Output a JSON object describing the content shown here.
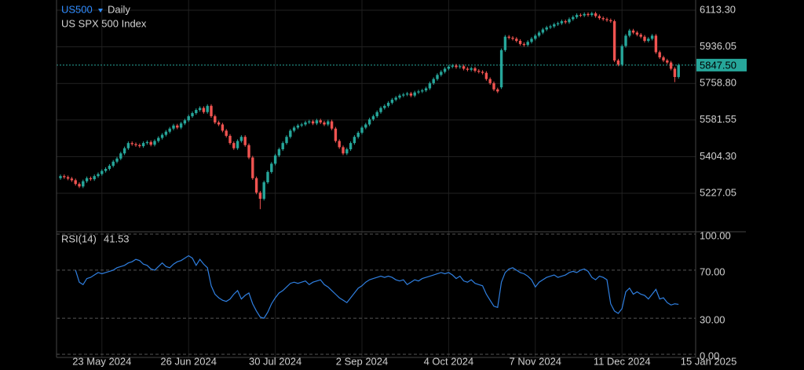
{
  "chart_data": [
    {
      "type": "candlestick",
      "title": "US500",
      "timeframe": "Daily",
      "subtitle": "US SPX 500 Index",
      "up_color": "#26a69a",
      "down_color": "#ef5350",
      "grid": true,
      "ylim": [
        5040.6,
        6162.75
      ],
      "yticks": [
        {
          "value": 6113.3,
          "label": "6113.30"
        },
        {
          "value": 5936.05,
          "label": "5936.05"
        },
        {
          "value": 5758.8,
          "label": "5758.80"
        },
        {
          "value": 5581.55,
          "label": "5581.55"
        },
        {
          "value": 5404.3,
          "label": "5404.30"
        },
        {
          "value": 5227.05,
          "label": "5227.05"
        }
      ],
      "last_price": {
        "value": 5847.5,
        "label": "5847.50",
        "color": "#26a69a"
      },
      "categories": [
        null,
        null,
        null,
        null,
        null,
        null,
        null,
        null,
        null,
        null,
        null,
        "23 May 2024",
        null,
        null,
        null,
        null,
        null,
        null,
        null,
        null,
        null,
        null,
        null,
        null,
        null,
        null,
        null,
        null,
        null,
        null,
        null,
        null,
        null,
        null,
        "26 Jun 2024",
        null,
        null,
        null,
        null,
        null,
        null,
        null,
        null,
        null,
        null,
        null,
        null,
        null,
        null,
        null,
        null,
        null,
        null,
        null,
        null,
        null,
        null,
        "30 Jul 2024",
        null,
        null,
        null,
        null,
        null,
        null,
        null,
        null,
        null,
        null,
        null,
        null,
        null,
        null,
        null,
        null,
        null,
        null,
        null,
        null,
        null,
        null,
        "2 Sep 2024",
        null,
        null,
        null,
        null,
        null,
        null,
        null,
        null,
        null,
        null,
        null,
        null,
        null,
        null,
        null,
        null,
        null,
        null,
        null,
        null,
        null,
        null,
        "4 Oct 2024",
        null,
        null,
        null,
        null,
        null,
        null,
        null,
        null,
        null,
        null,
        null,
        null,
        null,
        null,
        null,
        null,
        null,
        null,
        null,
        null,
        null,
        null,
        "7 Nov 2024",
        null,
        null,
        null,
        null,
        null,
        null,
        null,
        null,
        null,
        null,
        null,
        null,
        null,
        null,
        null,
        null,
        null,
        null,
        null,
        null,
        null,
        null,
        "11 Dec 2024",
        null,
        null,
        null,
        null,
        null,
        null,
        null,
        null,
        null,
        null,
        null,
        null,
        null,
        null,
        null,
        null,
        null,
        null,
        null,
        null,
        null,
        null,
        "15 Jan 2025"
      ],
      "open": [
        5300,
        5310,
        5305,
        5298,
        5290,
        5272,
        5260,
        5285,
        5300,
        5295,
        5310,
        5320,
        5335,
        5345,
        5360,
        5380,
        5395,
        5420,
        5445,
        5470,
        5465,
        5460,
        5455,
        5470,
        5475,
        5462,
        5480,
        5495,
        5510,
        5525,
        5540,
        5555,
        5545,
        5565,
        5580,
        5600,
        5615,
        5630,
        5640,
        5620,
        5650,
        5600,
        5570,
        5560,
        5530,
        5505,
        5470,
        5445,
        5480,
        5500,
        5460,
        5400,
        5300,
        5230,
        5200,
        5280,
        5330,
        5370,
        5410,
        5440,
        5470,
        5500,
        5530,
        5545,
        5555,
        5560,
        5570,
        5575,
        5565,
        5580,
        5570,
        5560,
        5575,
        5540,
        5480,
        5450,
        5420,
        5440,
        5470,
        5500,
        5520,
        5545,
        5560,
        5585,
        5600,
        5620,
        5640,
        5650,
        5665,
        5680,
        5690,
        5700,
        5705,
        5710,
        5700,
        5715,
        5720,
        5725,
        5735,
        5760,
        5780,
        5800,
        5815,
        5830,
        5840,
        5845,
        5838,
        5842,
        5830,
        5825,
        5832,
        5820,
        5815,
        5810,
        5780,
        5760,
        5730,
        5740,
        5920,
        5985,
        5980,
        5975,
        5965,
        5950,
        5945,
        5960,
        5975,
        5990,
        6005,
        6020,
        6030,
        6035,
        6045,
        6050,
        6060,
        6055,
        6070,
        6080,
        6090,
        6088,
        6095,
        6090,
        6098,
        6085,
        6075,
        6070,
        6065,
        6060,
        5870,
        5850,
        5940,
        5990,
        6015,
        6005,
        5995,
        5985,
        5965,
        5975,
        5990,
        5910,
        5885,
        5870,
        5860,
        5830,
        5790,
        null,
        null,
        null,
        null,
        null,
        null,
        null,
        null
      ],
      "high": [
        5318,
        5318,
        5313,
        5306,
        5298,
        5280,
        5293,
        5308,
        5308,
        5318,
        5328,
        5343,
        5353,
        5368,
        5388,
        5403,
        5428,
        5453,
        5478,
        5478,
        5473,
        5468,
        5478,
        5483,
        5483,
        5488,
        5503,
        5518,
        5533,
        5548,
        5563,
        5563,
        5573,
        5588,
        5608,
        5623,
        5638,
        5648,
        5648,
        5658,
        5658,
        5608,
        5578,
        5568,
        5538,
        5513,
        5478,
        5488,
        5508,
        5508,
        5468,
        5408,
        5308,
        5238,
        5288,
        5338,
        5378,
        5418,
        5448,
        5478,
        5508,
        5538,
        5553,
        5563,
        5568,
        5578,
        5583,
        5583,
        5588,
        5588,
        5578,
        5583,
        5583,
        5548,
        5488,
        5458,
        5448,
        5478,
        5508,
        5528,
        5553,
        5568,
        5593,
        5608,
        5628,
        5648,
        5658,
        5673,
        5688,
        5698,
        5708,
        5713,
        5718,
        5718,
        5723,
        5728,
        5733,
        5743,
        5768,
        5788,
        5808,
        5823,
        5838,
        5848,
        5853,
        5853,
        5850,
        5850,
        5838,
        5840,
        5840,
        5828,
        5823,
        5818,
        5788,
        5768,
        5738,
        5928,
        5993,
        5993,
        5988,
        5983,
        5973,
        5958,
        5968,
        5983,
        5998,
        6013,
        6028,
        6038,
        6043,
        6053,
        6058,
        6068,
        6068,
        6078,
        6088,
        6098,
        6098,
        6103,
        6103,
        6106,
        6106,
        6093,
        6083,
        6078,
        6073,
        6068,
        5878,
        5948,
        5998,
        6023,
        6023,
        6013,
        6003,
        5993,
        5983,
        5998,
        5998,
        5918,
        5893,
        5878,
        5868,
        5838,
        5855,
        null,
        null,
        null,
        null,
        null,
        null,
        null,
        null
      ],
      "low": [
        5292,
        5297,
        5290,
        5282,
        5264,
        5252,
        5252,
        5277,
        5287,
        5287,
        5302,
        5312,
        5327,
        5337,
        5352,
        5372,
        5387,
        5412,
        5437,
        5457,
        5452,
        5447,
        5447,
        5462,
        5454,
        5454,
        5472,
        5487,
        5502,
        5517,
        5532,
        5537,
        5537,
        5557,
        5572,
        5592,
        5607,
        5622,
        5612,
        5612,
        5592,
        5562,
        5552,
        5522,
        5497,
        5462,
        5437,
        5437,
        5472,
        5452,
        5392,
        5292,
        5222,
        5150,
        5192,
        5272,
        5322,
        5362,
        5402,
        5432,
        5462,
        5492,
        5522,
        5537,
        5547,
        5552,
        5562,
        5557,
        5557,
        5562,
        5552,
        5552,
        5532,
        5472,
        5442,
        5412,
        5412,
        5432,
        5462,
        5492,
        5512,
        5537,
        5552,
        5577,
        5592,
        5612,
        5632,
        5642,
        5657,
        5672,
        5682,
        5692,
        5697,
        5692,
        5692,
        5707,
        5712,
        5717,
        5727,
        5752,
        5772,
        5792,
        5807,
        5822,
        5832,
        5830,
        5830,
        5822,
        5817,
        5817,
        5812,
        5807,
        5802,
        5772,
        5752,
        5722,
        5712,
        5732,
        5912,
        5972,
        5967,
        5957,
        5942,
        5937,
        5937,
        5952,
        5967,
        5982,
        5997,
        6012,
        6022,
        6027,
        6037,
        6042,
        6047,
        6047,
        6062,
        6072,
        6080,
        6080,
        6082,
        6082,
        6077,
        6067,
        6062,
        6057,
        6052,
        5862,
        5842,
        5842,
        5932,
        5982,
        5997,
        5987,
        5977,
        5957,
        5957,
        5967,
        5902,
        5877,
        5862,
        5852,
        5822,
        5765,
        5782,
        null,
        null,
        null,
        null,
        null,
        null,
        null,
        null
      ],
      "close": [
        5310,
        5305,
        5298,
        5290,
        5272,
        5260,
        5285,
        5300,
        5295,
        5310,
        5320,
        5335,
        5345,
        5360,
        5380,
        5395,
        5420,
        5445,
        5470,
        5465,
        5460,
        5455,
        5470,
        5475,
        5462,
        5480,
        5495,
        5510,
        5525,
        5540,
        5555,
        5545,
        5565,
        5580,
        5600,
        5615,
        5630,
        5640,
        5620,
        5650,
        5600,
        5570,
        5560,
        5530,
        5505,
        5470,
        5445,
        5480,
        5500,
        5460,
        5400,
        5300,
        5230,
        5200,
        5280,
        5330,
        5370,
        5410,
        5440,
        5470,
        5500,
        5530,
        5545,
        5555,
        5560,
        5570,
        5575,
        5565,
        5580,
        5570,
        5560,
        5575,
        5540,
        5480,
        5450,
        5420,
        5440,
        5470,
        5500,
        5520,
        5545,
        5560,
        5585,
        5600,
        5620,
        5640,
        5650,
        5665,
        5680,
        5690,
        5700,
        5705,
        5710,
        5700,
        5715,
        5720,
        5725,
        5735,
        5760,
        5780,
        5800,
        5815,
        5830,
        5840,
        5845,
        5838,
        5842,
        5830,
        5825,
        5832,
        5820,
        5815,
        5810,
        5780,
        5760,
        5730,
        5720,
        5920,
        5985,
        5980,
        5975,
        5965,
        5950,
        5945,
        5960,
        5975,
        5990,
        6005,
        6020,
        6030,
        6035,
        6045,
        6050,
        6060,
        6055,
        6070,
        6080,
        6090,
        6088,
        6095,
        6090,
        6098,
        6085,
        6075,
        6070,
        6065,
        6060,
        5870,
        5850,
        5940,
        5990,
        6015,
        6005,
        5995,
        5985,
        5965,
        5975,
        5990,
        5910,
        5885,
        5870,
        5860,
        5830,
        5790,
        5847.5,
        null,
        null,
        null,
        null,
        null,
        null,
        null,
        null
      ]
    },
    {
      "type": "line",
      "title": "RSI(14)",
      "last_value": 41.53,
      "color": "#2f7fe0",
      "grid": true,
      "grid_dashed": true,
      "ylim": [
        0,
        100
      ],
      "yticks": [
        {
          "value": 100,
          "label": "100.00"
        },
        {
          "value": 70,
          "label": "70.00"
        },
        {
          "value": 30,
          "label": "30.00"
        },
        {
          "value": 0,
          "label": "0.00"
        }
      ],
      "values": [
        null,
        null,
        null,
        null,
        70,
        60,
        58,
        63,
        64,
        66,
        68,
        67,
        68,
        69,
        70,
        72,
        73,
        74,
        76,
        77,
        79,
        78,
        75,
        74,
        71,
        70,
        73,
        76,
        73,
        72,
        75,
        77,
        78,
        80,
        82,
        80,
        74,
        79,
        75,
        72,
        57,
        50,
        47,
        45,
        44,
        46,
        50,
        53,
        46,
        49,
        51,
        42,
        36,
        31,
        30,
        35,
        42,
        47,
        51,
        53,
        56,
        59,
        60,
        59,
        60,
        61,
        58,
        60,
        61,
        62,
        58,
        56,
        53,
        50,
        47,
        45,
        43,
        47,
        51,
        55,
        57,
        60,
        62,
        63,
        64,
        65,
        64,
        65,
        64,
        62,
        61,
        62,
        58,
        60,
        62,
        61,
        63,
        64,
        65,
        66,
        67,
        68,
        67,
        68,
        66,
        63,
        65,
        61,
        60,
        62,
        59,
        58,
        57,
        50,
        45,
        40,
        39,
        60,
        68,
        71,
        72,
        70,
        68,
        67,
        65,
        62,
        56,
        60,
        62,
        64,
        65,
        66,
        64,
        65,
        66,
        68,
        69,
        68,
        70,
        71,
        69,
        64,
        62,
        65,
        64,
        62,
        42,
        36,
        34,
        38,
        52,
        55,
        50,
        52,
        50,
        49,
        46,
        50,
        54,
        46,
        47,
        43,
        41,
        42,
        41.53,
        null,
        null,
        null,
        null,
        null,
        null,
        null,
        null
      ]
    }
  ]
}
